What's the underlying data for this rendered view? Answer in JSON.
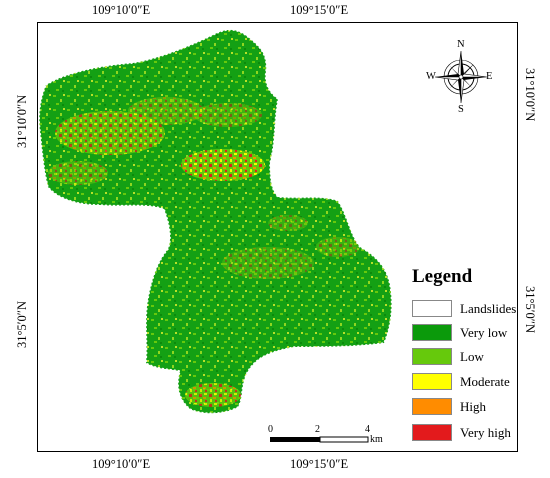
{
  "coords": {
    "top": [
      "109°10′0″E",
      "109°15′0″E"
    ],
    "bottom": [
      "109°10′0″E",
      "109°15′0″E"
    ],
    "left": [
      "31°10′0″N",
      "31°5′0″N"
    ],
    "right": [
      "31°10′0″N",
      "31°5′0″N"
    ]
  },
  "legend": {
    "title": "Legend",
    "items": [
      {
        "label": "Landslides",
        "color": "#ffffff"
      },
      {
        "label": "Very low",
        "color": "#0b9a0b"
      },
      {
        "label": "Low",
        "color": "#66c90c"
      },
      {
        "label": "Moderate",
        "color": "#ffff00"
      },
      {
        "label": "High",
        "color": "#ff8c00"
      },
      {
        "label": "Very high",
        "color": "#e31a1c"
      }
    ]
  },
  "scalebar": {
    "ticks": [
      "0",
      "2",
      "4"
    ],
    "unit": "km"
  },
  "compass": {
    "n": "N",
    "s": "S",
    "e": "E",
    "w": "W"
  }
}
